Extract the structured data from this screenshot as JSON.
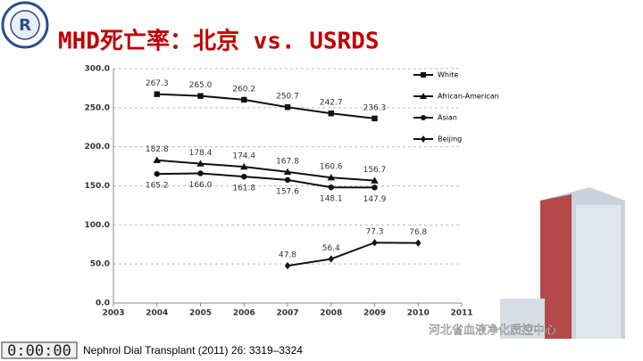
{
  "header": {
    "title": "MHD死亡率：北京 vs. USRDS"
  },
  "chart_data": {
    "type": "line",
    "x": [
      2004,
      2005,
      2006,
      2007,
      2008,
      2009,
      2010
    ],
    "xlim": [
      2003,
      2011
    ],
    "xticks": [
      2003,
      2004,
      2005,
      2006,
      2007,
      2008,
      2009,
      2010,
      2011
    ],
    "ylim": [
      0,
      300
    ],
    "yticks": [
      {
        "value": 0,
        "label": "0.0"
      },
      {
        "value": 50,
        "label": "50.0"
      },
      {
        "value": 100,
        "label": "100.0"
      },
      {
        "value": 150,
        "label": "150.0"
      },
      {
        "value": 200,
        "label": "200.0"
      },
      {
        "value": 250,
        "label": "250.0"
      },
      {
        "value": 300,
        "label": "300.0"
      }
    ],
    "grid": true,
    "legend": "upper right",
    "series": [
      {
        "name": "White",
        "color": "#111111",
        "marker": "square",
        "values": [
          267.3,
          265.0,
          260.2,
          250.7,
          242.7,
          236.3,
          null
        ],
        "value_labels": [
          "267.3",
          "265.0",
          "260.2",
          "250.7",
          "242.7",
          "236.3",
          null
        ]
      },
      {
        "name": "African-American",
        "color": "#111111",
        "marker": "triangle",
        "values": [
          182.8,
          178.4,
          174.4,
          167.8,
          160.6,
          156.7,
          null
        ],
        "value_labels": [
          "182.8",
          "178.4",
          "174.4",
          "167.8",
          "160.6",
          "156.7",
          null
        ]
      },
      {
        "name": "Asian",
        "color": "#111111",
        "marker": "circle",
        "values": [
          165.2,
          166.0,
          161.8,
          157.6,
          148.1,
          147.9,
          null
        ],
        "value_labels": [
          "165.2",
          "166.0",
          "161.8",
          "157.6",
          "148.1",
          "147.9",
          null
        ]
      },
      {
        "name": "Beijing",
        "color": "#111111",
        "marker": "diamond",
        "values": [
          null,
          null,
          null,
          47.8,
          56.4,
          77.3,
          76.8
        ],
        "value_labels": [
          null,
          null,
          null,
          "47.8",
          "56.4",
          "77.3",
          "76.8"
        ]
      }
    ]
  },
  "footer": {
    "timer": "0:00:00",
    "citation": "Nephrol Dial Transplant (2011) 26: 3319–3324",
    "watermark": "河北省血液净化质控中心"
  }
}
